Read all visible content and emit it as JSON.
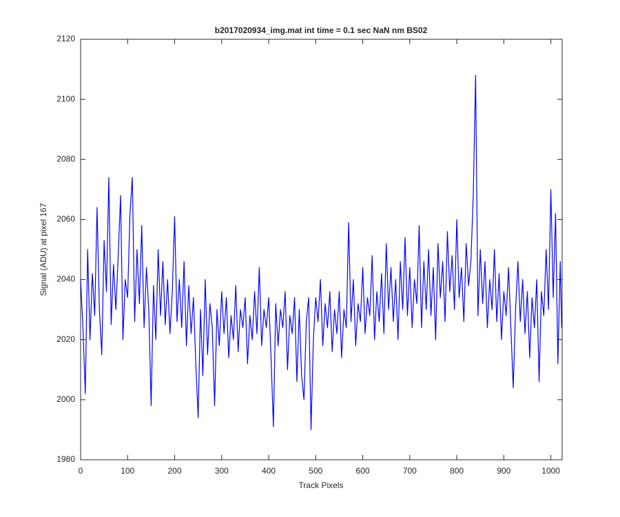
{
  "chart_data": {
    "type": "line",
    "title": "b2017020934_img.mat int time = 0.1 sec  NaN nm BS02",
    "x_label": "Track Pixels",
    "y_label": "Signal (ADU) at pixel 167",
    "xlim": [
      0,
      1024
    ],
    "ylim": [
      1980,
      2120
    ],
    "xticks": [
      0,
      100,
      200,
      300,
      400,
      500,
      600,
      700,
      800,
      900,
      1000
    ],
    "yticks": [
      1980,
      2000,
      2020,
      2040,
      2060,
      2080,
      2100,
      2120
    ],
    "grid": false,
    "series": [
      {
        "color": "#0000ff",
        "x": [
          0,
          5,
          10,
          15,
          20,
          25,
          30,
          35,
          40,
          45,
          50,
          55,
          60,
          65,
          70,
          75,
          80,
          85,
          90,
          95,
          100,
          105,
          110,
          115,
          120,
          125,
          130,
          135,
          140,
          145,
          150,
          155,
          160,
          165,
          170,
          175,
          180,
          185,
          190,
          195,
          200,
          205,
          210,
          215,
          220,
          225,
          230,
          235,
          240,
          245,
          250,
          255,
          260,
          265,
          270,
          275,
          280,
          285,
          290,
          295,
          300,
          305,
          310,
          315,
          320,
          325,
          330,
          335,
          340,
          345,
          350,
          355,
          360,
          365,
          370,
          375,
          380,
          385,
          390,
          395,
          400,
          405,
          410,
          415,
          420,
          425,
          430,
          435,
          440,
          445,
          450,
          455,
          460,
          465,
          470,
          475,
          480,
          485,
          490,
          495,
          500,
          505,
          510,
          515,
          520,
          525,
          530,
          535,
          540,
          545,
          550,
          555,
          560,
          565,
          570,
          575,
          580,
          585,
          590,
          595,
          600,
          605,
          610,
          615,
          620,
          625,
          630,
          635,
          640,
          645,
          650,
          655,
          660,
          665,
          670,
          675,
          680,
          685,
          690,
          695,
          700,
          705,
          710,
          715,
          720,
          725,
          730,
          735,
          740,
          745,
          750,
          755,
          760,
          765,
          770,
          775,
          780,
          785,
          790,
          795,
          800,
          805,
          810,
          815,
          820,
          825,
          830,
          835,
          840,
          845,
          850,
          855,
          860,
          865,
          870,
          875,
          880,
          885,
          890,
          895,
          900,
          905,
          910,
          915,
          920,
          925,
          930,
          935,
          940,
          945,
          950,
          955,
          960,
          965,
          970,
          975,
          980,
          985,
          990,
          995,
          1000,
          1005,
          1010,
          1015,
          1020,
          1023
        ],
        "values": [
          2040,
          2024,
          2002,
          2050,
          2020,
          2042,
          2028,
          2064,
          2030,
          2015,
          2053,
          2036,
          2074,
          2025,
          2045,
          2030,
          2048,
          2068,
          2020,
          2040,
          2034,
          2062,
          2074,
          2026,
          2050,
          2032,
          2058,
          2024,
          2044,
          2030,
          1998,
          2038,
          2020,
          2050,
          2028,
          2046,
          2025,
          2040,
          2022,
          2036,
          2061,
          2026,
          2040,
          2024,
          2046,
          2018,
          2038,
          2022,
          2034,
          2012,
          1994,
          2030,
          2008,
          2040,
          2015,
          2032,
          2024,
          1998,
          2030,
          2018,
          2036,
          2022,
          2034,
          2014,
          2028,
          2020,
          2038,
          2016,
          2030,
          2024,
          2034,
          2012,
          2028,
          2020,
          2036,
          2022,
          2044,
          2018,
          2030,
          2024,
          2034,
          2014,
          1991,
          2032,
          2018,
          2030,
          2024,
          2036,
          2010,
          2028,
          2022,
          2034,
          2006,
          2030,
          2008,
          2000,
          2026,
          2034,
          1990,
          2020,
          2034,
          2026,
          2040,
          2018,
          2032,
          2024,
          2036,
          2016,
          2030,
          2022,
          2036,
          2014,
          2030,
          2024,
          2059,
          2026,
          2040,
          2018,
          2032,
          2026,
          2044,
          2022,
          2034,
          2028,
          2048,
          2020,
          2036,
          2026,
          2042,
          2022,
          2052,
          2030,
          2044,
          2026,
          2040,
          2020,
          2046,
          2030,
          2054,
          2028,
          2044,
          2024,
          2040,
          2032,
          2058,
          2024,
          2046,
          2030,
          2050,
          2028,
          2044,
          2020,
          2052,
          2034,
          2046,
          2026,
          2056,
          2036,
          2048,
          2030,
          2060,
          2034,
          2044,
          2026,
          2052,
          2038,
          2046,
          2068,
          2108,
          2028,
          2050,
          2032,
          2046,
          2024,
          2040,
          2030,
          2050,
          2026,
          2042,
          2020,
          2036,
          2028,
          2044,
          2024,
          2004,
          2030,
          2046,
          2026,
          2040,
          2022,
          2036,
          2014,
          2034,
          2024,
          2040,
          2006,
          2036,
          2028,
          2050,
          2030,
          2070,
          2034,
          2062,
          2012,
          2046,
          2024
        ]
      }
    ]
  }
}
